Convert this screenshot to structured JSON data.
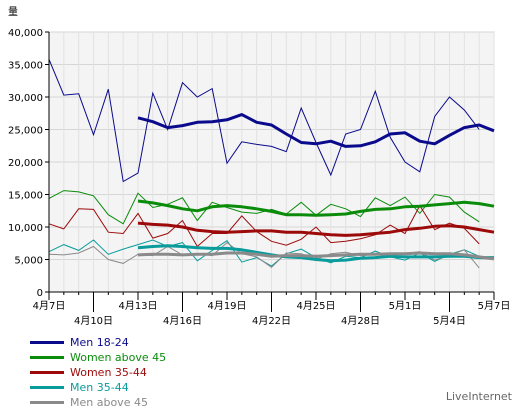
{
  "chart_data": {
    "type": "line",
    "ylabel": "量",
    "ylim": [
      0,
      40000
    ],
    "yticks": [
      "0",
      "5,000",
      "10,000",
      "15,000",
      "20,000",
      "25,000",
      "30,000",
      "35,000",
      "40,000"
    ],
    "xticks": [
      {
        "i": 0,
        "label": "4月7日"
      },
      {
        "i": 3,
        "label": "4月10日"
      },
      {
        "i": 6,
        "label": "4月13日"
      },
      {
        "i": 9,
        "label": "4月16日"
      },
      {
        "i": 12,
        "label": "4月19日"
      },
      {
        "i": 15,
        "label": "4月22日"
      },
      {
        "i": 18,
        "label": "4月25日"
      },
      {
        "i": 21,
        "label": "4月28日"
      },
      {
        "i": 24,
        "label": "5月1日"
      },
      {
        "i": 27,
        "label": "5月4日"
      },
      {
        "i": 30,
        "label": "5月7日"
      }
    ],
    "x_count": 31,
    "grid": true,
    "series": [
      {
        "name": "Men 18-24",
        "color": "#0a0a8c",
        "daily": [
          35800,
          30300,
          30500,
          24200,
          31200,
          17000,
          18300,
          30600,
          25000,
          32200,
          30000,
          31300,
          19800,
          23100,
          22700,
          22400,
          21600,
          28300,
          23000,
          18000,
          24300,
          25000,
          30900,
          23800,
          20000,
          18500,
          27000,
          30000,
          28000,
          25000,
          null
        ],
        "avg": [
          null,
          null,
          null,
          null,
          null,
          null,
          26800,
          26200,
          25300,
          25600,
          26100,
          26200,
          26500,
          27300,
          26100,
          25700,
          24300,
          23000,
          22800,
          23200,
          22400,
          22500,
          23100,
          24300,
          24500,
          23200,
          22800,
          24100,
          25300,
          25700,
          24800
        ]
      },
      {
        "name": "Women above 45",
        "color": "#0a8c0a",
        "daily": [
          14400,
          15600,
          15400,
          14800,
          11900,
          10500,
          15200,
          13000,
          13500,
          14500,
          11000,
          13800,
          13000,
          12300,
          12100,
          12700,
          12000,
          13800,
          11800,
          13500,
          12800,
          11600,
          14500,
          13300,
          14600,
          12100,
          15000,
          14600,
          12300,
          10800,
          null
        ],
        "avg": [
          null,
          null,
          null,
          null,
          null,
          null,
          14000,
          13700,
          13300,
          12800,
          12500,
          13100,
          13300,
          13100,
          12800,
          12400,
          11900,
          11900,
          11800,
          11900,
          12000,
          12400,
          12700,
          12800,
          13100,
          13200,
          13400,
          13600,
          13800,
          13600,
          13200
        ]
      },
      {
        "name": "Women 35-44",
        "color": "#9c0a0a",
        "daily": [
          10500,
          9700,
          12800,
          12700,
          9200,
          9000,
          12100,
          8300,
          9000,
          11000,
          7000,
          9000,
          9000,
          11700,
          9300,
          7800,
          7200,
          8100,
          10000,
          7600,
          7800,
          8200,
          8800,
          10300,
          9000,
          13300,
          9600,
          10600,
          9800,
          7400,
          null
        ],
        "avg": [
          null,
          null,
          null,
          null,
          null,
          null,
          10600,
          10400,
          10300,
          10000,
          9500,
          9300,
          9200,
          9300,
          9400,
          9400,
          9200,
          9200,
          9000,
          8800,
          8700,
          8800,
          9000,
          9200,
          9600,
          9800,
          10100,
          10200,
          10000,
          9600,
          9200
        ]
      },
      {
        "name": "Men 35-44",
        "color": "#0a9c9c",
        "daily": [
          6200,
          7300,
          6400,
          8000,
          5800,
          6600,
          7300,
          8000,
          7000,
          7600,
          4800,
          6400,
          7900,
          4600,
          5300,
          4000,
          5900,
          6600,
          5300,
          4500,
          5500,
          5300,
          6300,
          5400,
          4900,
          6000,
          4700,
          5800,
          6500,
          5500,
          null
        ],
        "avg": [
          null,
          null,
          null,
          null,
          null,
          null,
          6800,
          7000,
          7100,
          7000,
          6800,
          6700,
          6700,
          6500,
          6100,
          5700,
          5400,
          5300,
          5000,
          4800,
          4900,
          5200,
          5300,
          5500,
          5400,
          5400,
          5400,
          5500,
          5500,
          5300,
          5300
        ]
      },
      {
        "name": "Men above 45",
        "color": "#8a8a8a",
        "daily": [
          5800,
          5700,
          6000,
          7000,
          5000,
          4400,
          5800,
          5600,
          7000,
          5700,
          5900,
          5600,
          7600,
          5900,
          5400,
          3800,
          6000,
          5900,
          5000,
          5900,
          6100,
          5600,
          5800,
          6000,
          5900,
          6200,
          4900,
          5600,
          6500,
          3700,
          null
        ],
        "avg": [
          null,
          null,
          null,
          null,
          null,
          null,
          5700,
          5800,
          5800,
          5700,
          5800,
          5800,
          6000,
          6000,
          5800,
          5500,
          5600,
          5600,
          5500,
          5600,
          5700,
          5800,
          5800,
          5900,
          5900,
          6000,
          5900,
          5900,
          5700,
          5400,
          5100
        ]
      }
    ]
  },
  "brand": "LiveInternet"
}
